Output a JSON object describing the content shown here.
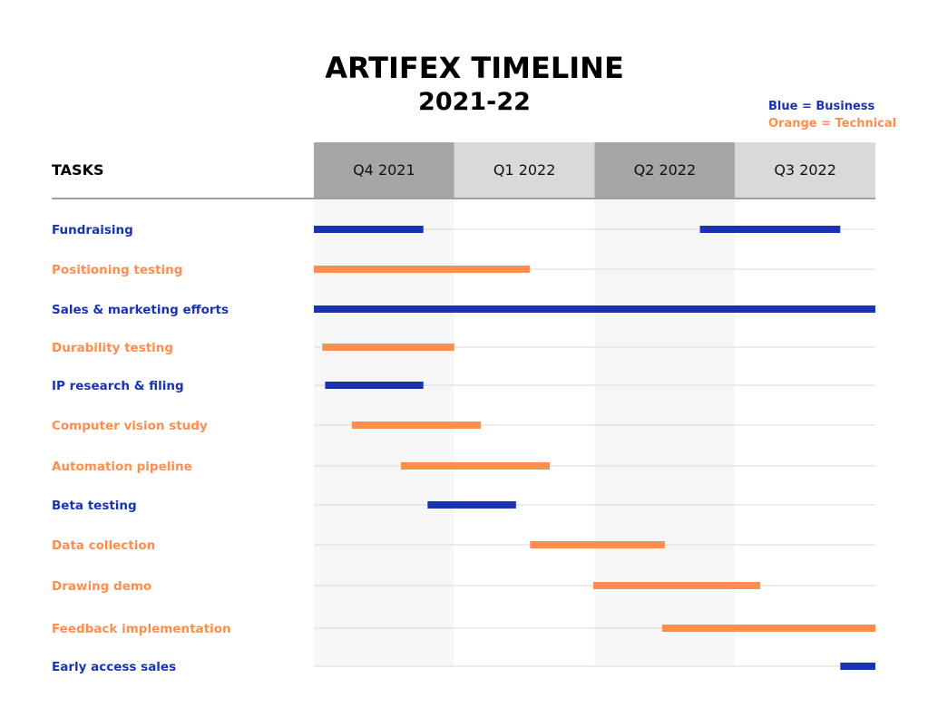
{
  "colors": {
    "business": "#1a34b0",
    "technical": "#fd8e4f",
    "header_dark": "#a6a6a6",
    "header_light": "#d9d9d9",
    "band_light": "#f7f7f7",
    "row_line": "#d9d9d9",
    "header_line": "#a0a0a0"
  },
  "chart_data": {
    "type": "gantt",
    "title": "ARTIFEX TIMELINE",
    "subtitle": "2021-22",
    "legend": [
      {
        "label": "Blue = Business",
        "category": "business"
      },
      {
        "label": "Orange = Technical",
        "category": "technical"
      }
    ],
    "legend_position": "top-right",
    "tasks_header": "TASKS",
    "periods": [
      "Q4 2021",
      "Q1 2022",
      "Q2 2022",
      "Q3 2022"
    ],
    "x_unit": "quarters from start of Q4 2021",
    "xlim": [
      0,
      4
    ],
    "tasks": [
      {
        "name": "Fundraising",
        "category": "business",
        "segments": [
          [
            0.0,
            0.78
          ],
          [
            2.75,
            3.75
          ]
        ]
      },
      {
        "name": "Positioning testing",
        "category": "technical",
        "segments": [
          [
            0.0,
            1.54
          ]
        ]
      },
      {
        "name": "Sales & marketing efforts",
        "category": "business",
        "segments": [
          [
            0.0,
            4.0
          ]
        ]
      },
      {
        "name": "Durability testing",
        "category": "technical",
        "segments": [
          [
            0.06,
            1.0
          ]
        ]
      },
      {
        "name": "IP research & filing",
        "category": "business",
        "segments": [
          [
            0.08,
            0.78
          ]
        ]
      },
      {
        "name": "Computer vision study",
        "category": "technical",
        "segments": [
          [
            0.27,
            1.19
          ]
        ]
      },
      {
        "name": "Automation pipeline",
        "category": "technical",
        "segments": [
          [
            0.62,
            1.68
          ]
        ]
      },
      {
        "name": "Beta testing",
        "category": "business",
        "segments": [
          [
            0.81,
            1.44
          ]
        ]
      },
      {
        "name": "Data collection",
        "category": "technical",
        "segments": [
          [
            1.54,
            2.5
          ]
        ]
      },
      {
        "name": "Drawing demo",
        "category": "technical",
        "segments": [
          [
            1.99,
            3.18
          ]
        ]
      },
      {
        "name": "Feedback implementation",
        "category": "technical",
        "segments": [
          [
            2.48,
            4.0
          ]
        ]
      },
      {
        "name": "Early access sales",
        "category": "business",
        "segments": [
          [
            3.75,
            4.0
          ]
        ]
      }
    ]
  }
}
